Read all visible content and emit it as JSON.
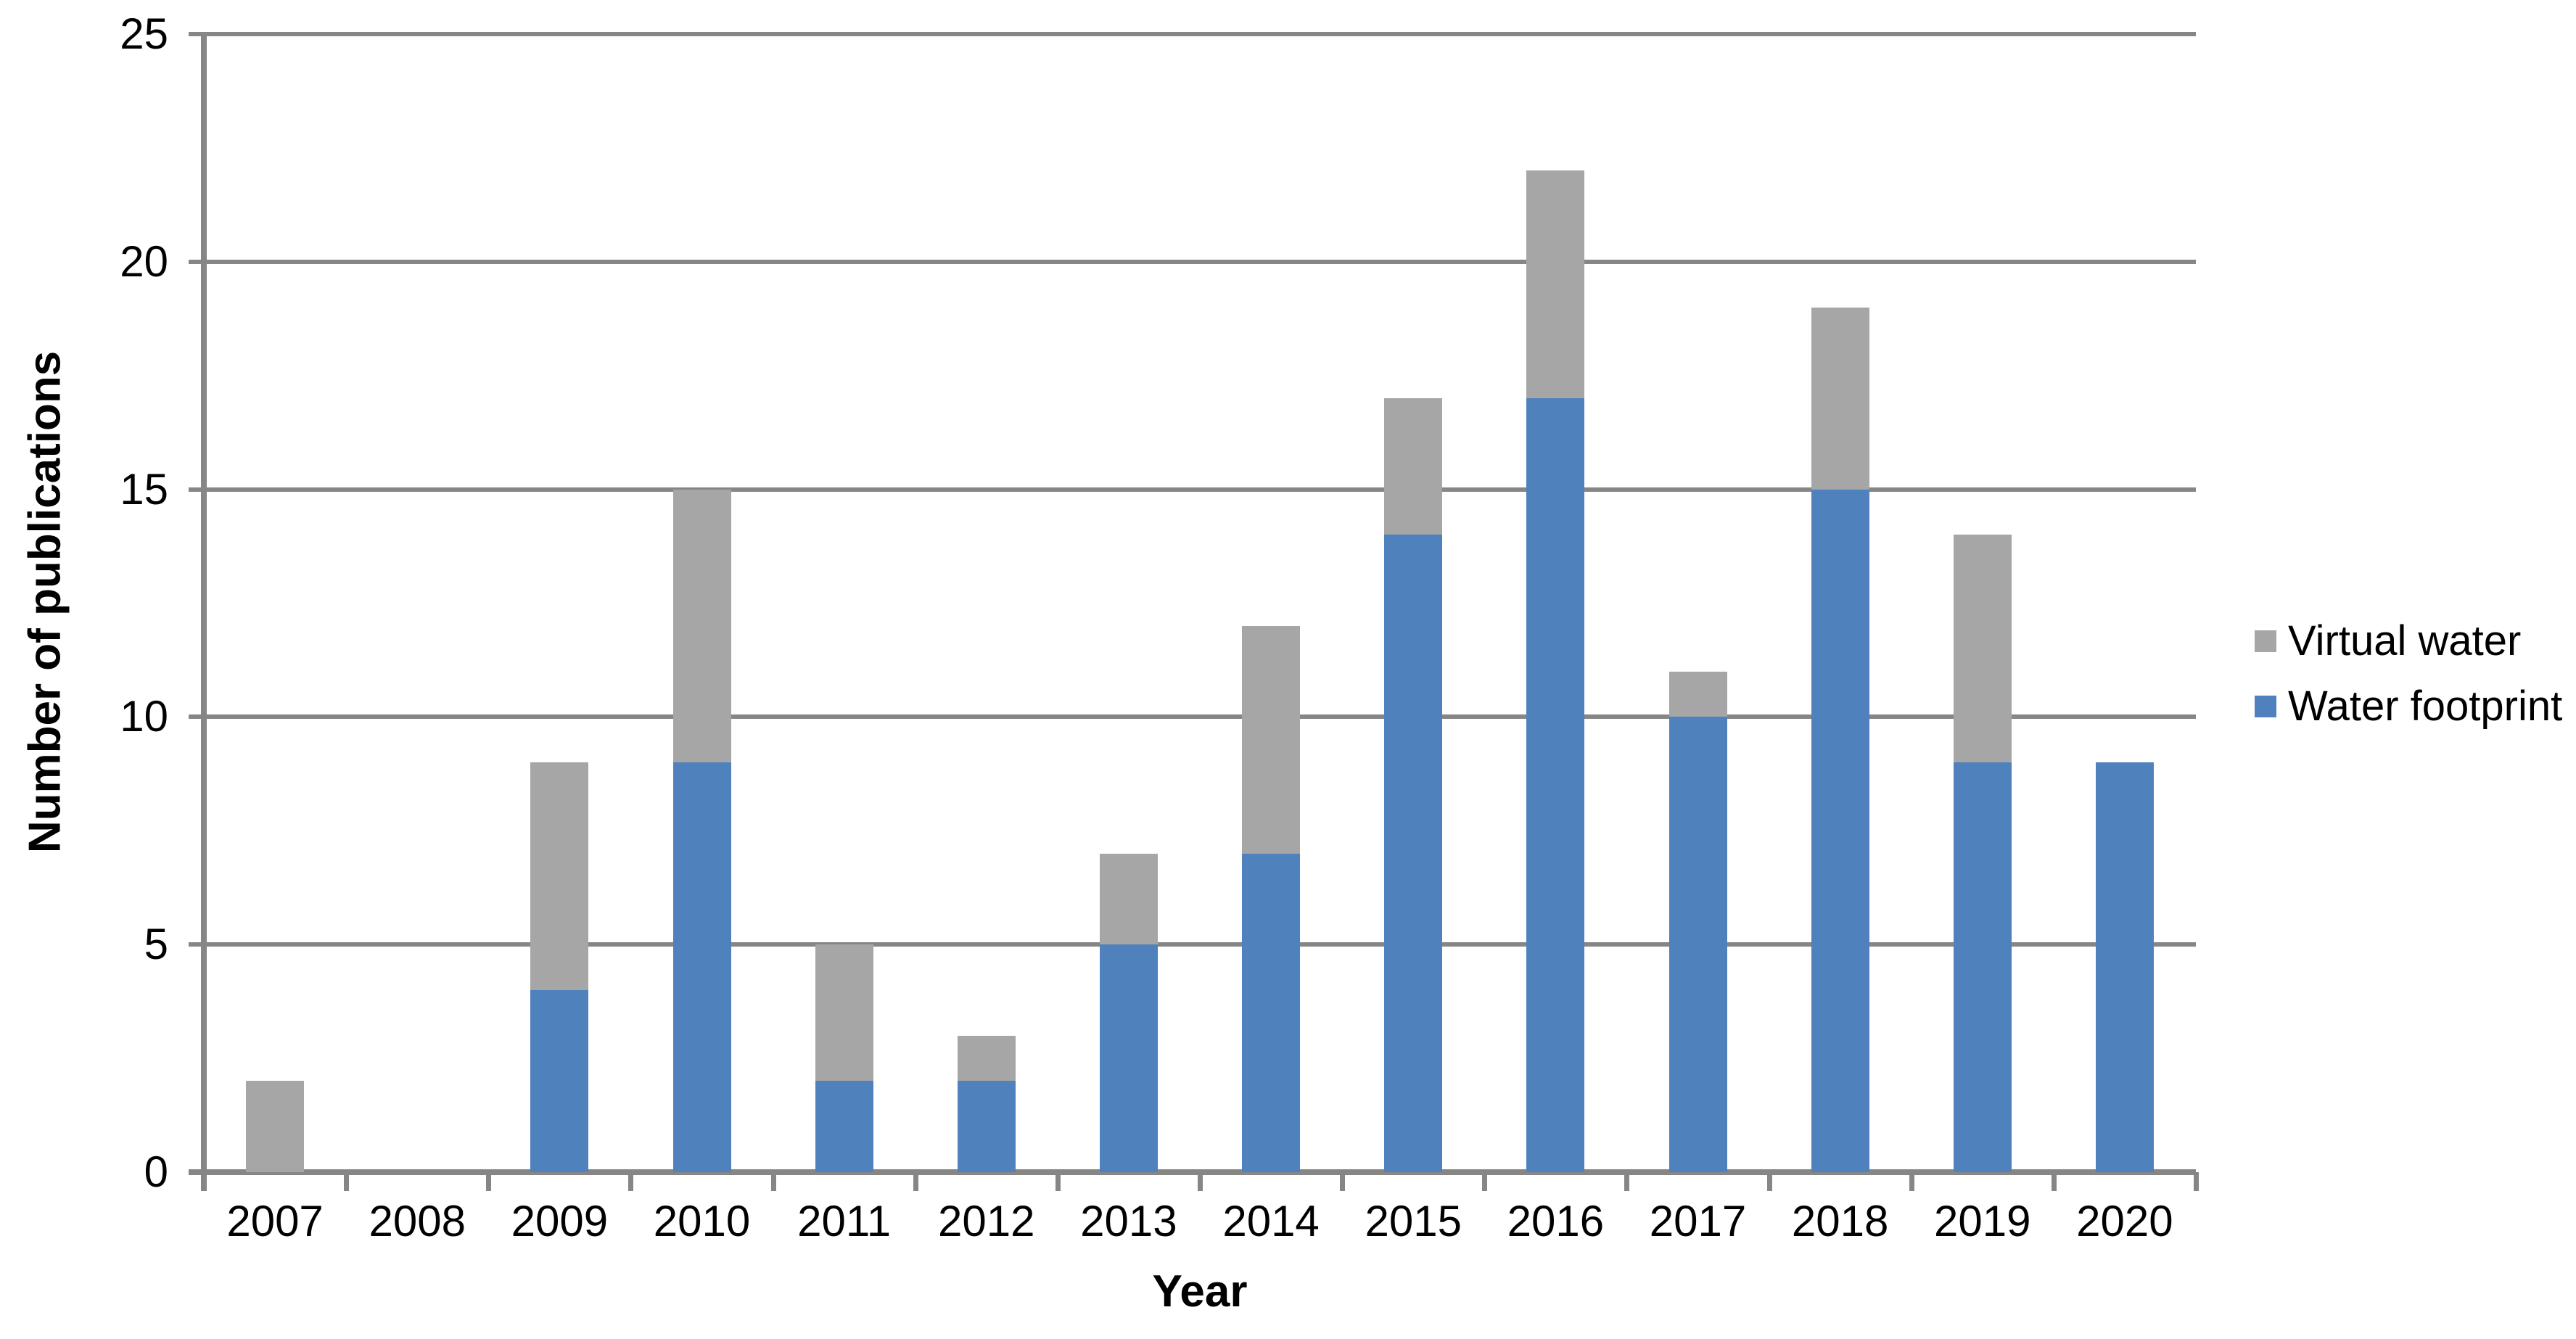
{
  "chart_data": {
    "type": "bar",
    "stacked": true,
    "title": "",
    "xlabel": "Year",
    "ylabel": "Number of publications",
    "categories": [
      "2007",
      "2008",
      "2009",
      "2010",
      "2011",
      "2012",
      "2013",
      "2014",
      "2015",
      "2016",
      "2017",
      "2018",
      "2019",
      "2020"
    ],
    "series": [
      {
        "name": "Virtual water",
        "color": "#A6A6A6",
        "values": [
          2,
          0,
          5,
          6,
          3,
          1,
          2,
          5,
          3,
          5,
          1,
          4,
          5,
          0
        ]
      },
      {
        "name": "Water footprint",
        "color": "#4F81BD",
        "values": [
          0,
          0,
          4,
          9,
          2,
          2,
          5,
          7,
          14,
          17,
          10,
          15,
          9,
          9
        ]
      }
    ],
    "totals": [
      2,
      0,
      9,
      15,
      5,
      3,
      7,
      12,
      17,
      22,
      11,
      19,
      14,
      9
    ],
    "ylim": [
      0,
      25
    ],
    "y_ticks": [
      0,
      5,
      10,
      15,
      20,
      25
    ],
    "grid": true,
    "legend_position": "right",
    "colors": {
      "axis_and_grid": "#868686",
      "background": "#FFFFFF",
      "text": "#000000"
    }
  }
}
